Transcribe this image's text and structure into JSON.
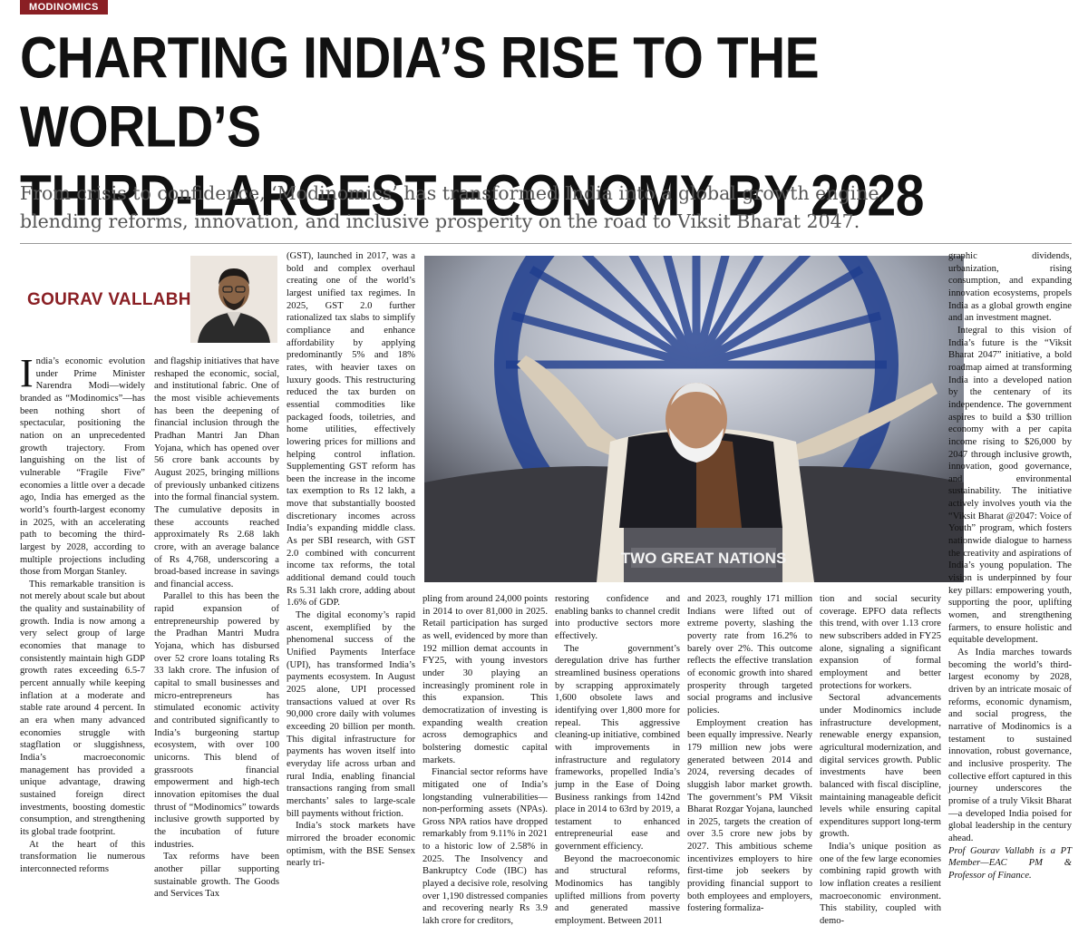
{
  "section_tag": "MODINOMICS",
  "headline": {
    "line1": "CHARTING INDIA’S RISE TO THE WORLD’S",
    "line2": "THIRD-LARGEST ECONOMY BY 2028"
  },
  "deck": {
    "line1": "From crisis to confidence, ‘Modinomics’ has transformed India into a global growth engine,",
    "line2": "blending reforms, innovation, and inclusive prosperity on the road to Viksit Bharat 2047."
  },
  "byline": "GOURAV VALLABH",
  "photo_caption_text": "TWO GREAT NATIONS",
  "columns": {
    "col1": {
      "dropcap": "I",
      "p1": "ndia’s economic evolution under Prime Minister Narendra Modi—widely branded as “Modinomics”—has been nothing short of spectacular, positioning the nation on an unprecedented growth trajectory. From languishing on the list of vulnerable “Fragile Five” economies a little over a decade ago, India has emerged as the world’s fourth-largest economy in 2025, with an accelerating path to becoming the third-largest by 2028, according to multiple projections including those from Morgan Stanley.",
      "p2": "This remarkable transition is not merely about scale but about the quality and sustainability of growth. India is now among a very select group of large economies that manage to consistently maintain high GDP growth rates exceeding 6.5-7 percent annually while keeping inflation at a moderate and stable rate around 4 percent. In an era when many advanced economies struggle with stagflation or sluggishness, India’s macroeconomic management has provided a unique advantage, drawing sustained foreign direct investments, boosting domestic consumption, and strengthening its global trade footprint.",
      "p3": "At the heart of this transformation lie numerous interconnected reforms"
    },
    "col2": {
      "p1": "and flagship initiatives that have reshaped the economic, social, and institutional fabric. One of the most visible achievements has been the deepening of financial inclusion through the Pradhan Mantri Jan Dhan Yojana, which has opened over 56 crore bank accounts by August 2025, bringing millions of previously unbanked citizens into the formal financial system. The cumulative deposits in these accounts reached approximately Rs 2.68 lakh crore, with an average balance of Rs 4,768, underscoring a broad-based increase in savings and financial access.",
      "p2": "Parallel to this has been the rapid expansion of entrepreneurship powered by the Pradhan Mantri Mudra Yojana, which has disbursed over 52 crore loans totaling Rs 33 lakh crore. The infusion of capital to small businesses and micro-entrepreneurs has stimulated economic activity and contributed significantly to India’s burgeoning startup ecosystem, with over 100 unicorns. This blend of grassroots financial empowerment and high-tech innovation epitomises the dual thrust of “Modinomics” towards inclusive growth supported by the incubation of future industries.",
      "p3": "Tax reforms have been another pillar supporting sustainable growth. The Goods and Services Tax"
    },
    "col3_top": {
      "p1": "(GST), launched in 2017, was a bold and complex overhaul creating one of the world’s largest unified tax regimes. In 2025, GST 2.0 further rationalized tax slabs to simplify compliance and enhance affordability by applying predominantly 5% and 18% rates, with heavier taxes on luxury goods. This restructuring reduced the tax burden on essential commodities like packaged foods, toiletries, and home utilities, effectively lowering prices for millions and helping control inflation. Supplementing GST reform has been the increase in the income tax exemption to Rs 12 lakh, a move that substantially boosted discretionary incomes across India’s expanding middle class. As per SBI research, with GST 2.0 combined with concurrent income tax reforms, the total additional demand could touch Rs 5.31 lakh crore, adding about 1.6% of GDP.",
      "p2": "The digital economy’s rapid ascent, exemplified by the phenomenal success of the Unified Payments Interface (UPI), has transformed India’s payments ecosystem. In August 2025 alone, UPI processed transactions valued at over Rs 90,000 crore daily with volumes exceeding 20 billion per month. This digital infrastructure for payments has woven itself into everyday life across urban and rural India, enabling financial transactions ranging from small merchants’ sales to large-scale bill payments without friction.",
      "p3": "India’s stock markets have mirrored the broader economic optimism, with the BSE Sensex nearly tri-"
    },
    "col4": {
      "p1": "pling from around 24,000 points in 2014 to over 81,000 in 2025. Retail participation has surged as well, evidenced by more than 192 million demat accounts in FY25, with young investors under 30 playing an increasingly prominent role in this expansion. This democratization of investing is expanding wealth creation across demographics and bolstering domestic capital markets.",
      "p2": "Financial sector reforms have mitigated one of India’s longstanding vulnerabilities—non-performing assets (NPAs). Gross NPA ratios have dropped remarkably from 9.11% in 2021 to a historic low of 2.58% in 2025. The Insolvency and Bankruptcy Code (IBC) has played a decisive role, resolving over 1,190 distressed companies and recovering nearly Rs 3.9 lakh crore for creditors,"
    },
    "col5": {
      "p1": "restoring confidence and enabling banks to channel credit into productive sectors more effectively.",
      "p2": "The government’s deregulation drive has further streamlined business operations by scrapping approximately 1,600 obsolete laws and identifying over 1,800 more for repeal. This aggressive cleaning-up initiative, combined with improvements in infrastructure and regulatory frameworks, propelled India’s jump in the Ease of Doing Business rankings from 142nd place in 2014 to 63rd by 2019, a testament to enhanced entrepreneurial ease and government efficiency.",
      "p3": "Beyond the macroeconomic and structural reforms, Modinomics has tangibly uplifted millions from poverty and generated massive employment. Between 2011"
    },
    "col6": {
      "p1": "and 2023, roughly 171 million Indians were lifted out of extreme poverty, slashing the poverty rate from 16.2% to barely over 2%. This outcome reflects the effective translation of economic growth into shared prosperity through targeted social programs and inclusive policies.",
      "p2": "Employment creation has been equally impressive. Nearly 179 million new jobs were generated between 2014 and 2024, reversing decades of sluggish labor market growth. The government’s PM Viksit Bharat Rozgar Yojana, launched in 2025, targets the creation of over 3.5 crore new jobs by 2027. This ambitious scheme incentivizes employers to hire first-time job seekers by providing financial support to both employees and employers, fostering formaliza-"
    },
    "col7": {
      "p1": "tion and social security coverage. EPFO data reflects this trend, with over 1.13 crore new subscribers added in FY25 alone, signaling a significant expansion of formal employment and better protections for workers.",
      "p2": "Sectoral advancements under Modinomics include infrastructure development, renewable energy expansion, agricultural modernization, and digital services growth. Public investments have been balanced with fiscal discipline, maintaining manageable deficit levels while ensuring capital expenditures support long-term growth.",
      "p3": "India’s unique position as one of the few large economies combining rapid growth with low inflation creates a resilient macroeconomic environment. This stability, coupled with demo-"
    },
    "col8": {
      "p1": "graphic dividends, urbanization, rising consumption, and expanding innovation ecosystems, propels India as a global growth engine and an investment magnet.",
      "p2": "Integral to this vision of India’s future is the “Viksit Bharat 2047” initiative, a bold roadmap aimed at transforming India into a developed nation by the centenary of its independence. The government aspires to build a $30 trillion economy with a per capita income rising to $26,000 by 2047 through inclusive growth, innovation, good governance, and environmental sustainability. The initiative actively involves youth via the “Viksit Bharat @2047: Voice of Youth” program, which fosters nationwide dialogue to harness the creativity and aspirations of India’s young population. The vision is underpinned by four key pillars: empowering youth, supporting the poor, uplifting women, and strengthening farmers, to ensure holistic and equitable development.",
      "p3": "As India marches towards becoming the world’s third-largest economy by 2028, driven by an intricate mosaic of reforms, economic dynamism, and social progress, the narrative of Modinomics is a testament to sustained innovation, robust governance, and inclusive prosperity. The collective effort captured in this journey underscores the promise of a truly Viksit Bharat—a developed India poised for global leadership in the century ahead.",
      "credit": "Prof Gourav Vallabh is a PT Member—EAC PM & Professor of Finance."
    }
  }
}
